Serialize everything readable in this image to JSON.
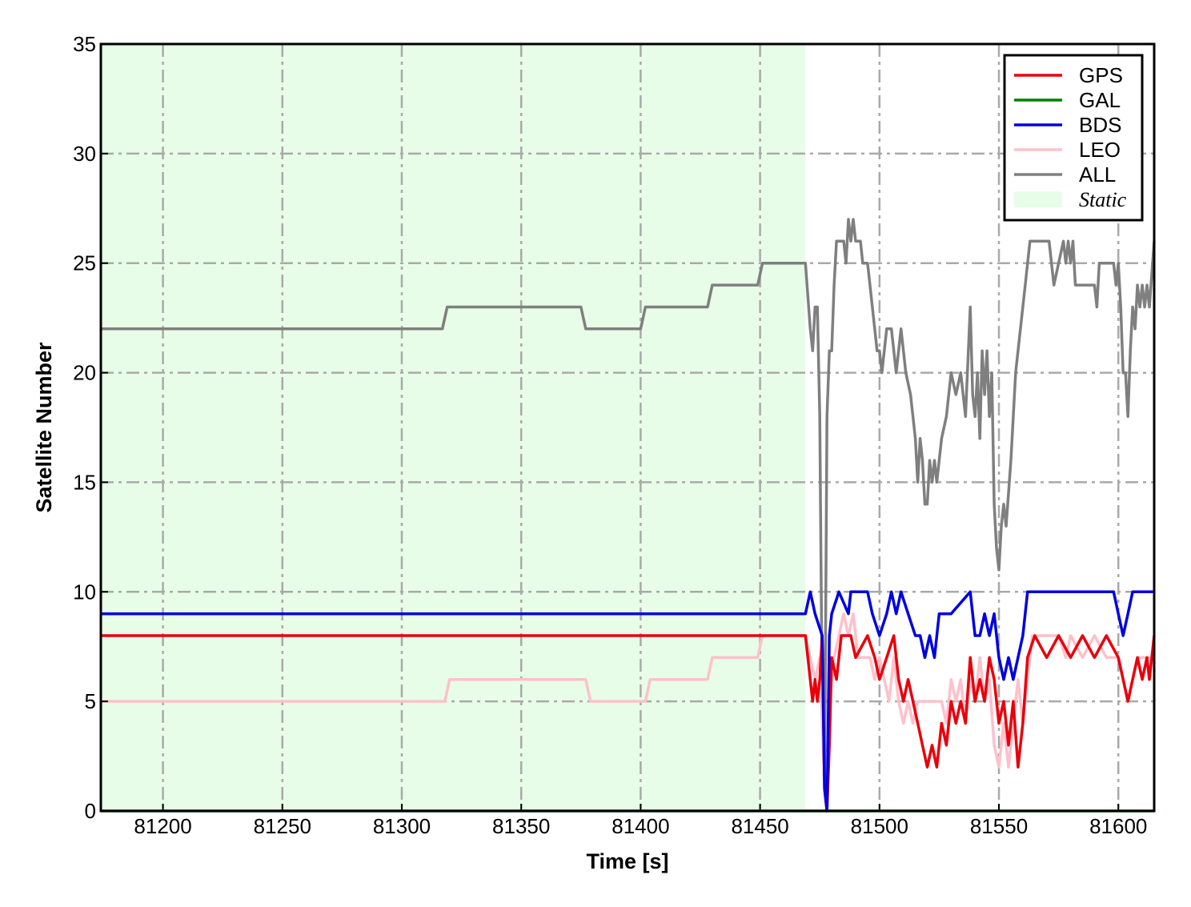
{
  "chart_data": {
    "type": "line",
    "xlabel": "Time [s]",
    "ylabel": "Satellite Number",
    "xlim": [
      81174,
      81615
    ],
    "ylim": [
      0,
      35
    ],
    "x_ticks": [
      81200,
      81250,
      81300,
      81350,
      81400,
      81450,
      81500,
      81550,
      81600
    ],
    "y_ticks": [
      0,
      5,
      10,
      15,
      20,
      25,
      30,
      35
    ],
    "grid": true,
    "legend_position": "top-right",
    "shaded_region": {
      "label": "Static",
      "x_start": 81174,
      "x_end": 81469,
      "color": "#e8fde8"
    },
    "series": [
      {
        "name": "GPS",
        "color": "#e8000b",
        "points": [
          [
            81174,
            8
          ],
          [
            81469,
            8
          ],
          [
            81471,
            6
          ],
          [
            81472,
            5
          ],
          [
            81473,
            6
          ],
          [
            81474,
            5
          ],
          [
            81475,
            6
          ],
          [
            81476,
            8
          ],
          [
            81477,
            1
          ],
          [
            81478,
            0
          ],
          [
            81479,
            3
          ],
          [
            81480,
            7
          ],
          [
            81482,
            6
          ],
          [
            81484,
            8
          ],
          [
            81488,
            8
          ],
          [
            81490,
            7
          ],
          [
            81495,
            8
          ],
          [
            81498,
            7
          ],
          [
            81500,
            6
          ],
          [
            81503,
            7
          ],
          [
            81506,
            8
          ],
          [
            81508,
            6
          ],
          [
            81510,
            5
          ],
          [
            81512,
            6
          ],
          [
            81514,
            5
          ],
          [
            81516,
            4
          ],
          [
            81518,
            3
          ],
          [
            81520,
            2
          ],
          [
            81522,
            3
          ],
          [
            81524,
            2
          ],
          [
            81526,
            4
          ],
          [
            81528,
            3
          ],
          [
            81530,
            5
          ],
          [
            81532,
            4
          ],
          [
            81534,
            5
          ],
          [
            81536,
            4
          ],
          [
            81538,
            7
          ],
          [
            81540,
            5
          ],
          [
            81542,
            6
          ],
          [
            81544,
            5
          ],
          [
            81546,
            7
          ],
          [
            81548,
            6
          ],
          [
            81550,
            4
          ],
          [
            81552,
            5
          ],
          [
            81554,
            3
          ],
          [
            81556,
            5
          ],
          [
            81558,
            2
          ],
          [
            81560,
            4
          ],
          [
            81562,
            7
          ],
          [
            81565,
            8
          ],
          [
            81570,
            7
          ],
          [
            81575,
            8
          ],
          [
            81580,
            7
          ],
          [
            81585,
            8
          ],
          [
            81590,
            7
          ],
          [
            81595,
            8
          ],
          [
            81600,
            7
          ],
          [
            81602,
            6
          ],
          [
            81604,
            5
          ],
          [
            81606,
            6
          ],
          [
            81608,
            7
          ],
          [
            81610,
            6
          ],
          [
            81612,
            7
          ],
          [
            81613,
            6
          ],
          [
            81615,
            8
          ]
        ]
      },
      {
        "name": "GAL",
        "color": "#008000",
        "points": [
          [
            81174,
            0
          ],
          [
            81615,
            0
          ]
        ]
      },
      {
        "name": "BDS",
        "color": "#0000e0",
        "points": [
          [
            81174,
            9
          ],
          [
            81469,
            9
          ],
          [
            81471,
            10
          ],
          [
            81473,
            9
          ],
          [
            81476,
            8
          ],
          [
            81477,
            1
          ],
          [
            81478,
            0
          ],
          [
            81479,
            8
          ],
          [
            81480,
            9
          ],
          [
            81483,
            10
          ],
          [
            81487,
            9
          ],
          [
            81488,
            10
          ],
          [
            81495,
            10
          ],
          [
            81497,
            9
          ],
          [
            81500,
            8
          ],
          [
            81503,
            9
          ],
          [
            81505,
            10
          ],
          [
            81507,
            9
          ],
          [
            81509,
            10
          ],
          [
            81512,
            9
          ],
          [
            81515,
            8
          ],
          [
            81517,
            8
          ],
          [
            81519,
            7
          ],
          [
            81521,
            8
          ],
          [
            81523,
            7
          ],
          [
            81525,
            9
          ],
          [
            81530,
            9
          ],
          [
            81538,
            10
          ],
          [
            81540,
            8
          ],
          [
            81542,
            8
          ],
          [
            81544,
            9
          ],
          [
            81546,
            8
          ],
          [
            81548,
            9
          ],
          [
            81550,
            7
          ],
          [
            81552,
            6
          ],
          [
            81554,
            7
          ],
          [
            81556,
            6
          ],
          [
            81558,
            7
          ],
          [
            81560,
            8
          ],
          [
            81562,
            10
          ],
          [
            81598,
            10
          ],
          [
            81600,
            9
          ],
          [
            81602,
            8
          ],
          [
            81604,
            9
          ],
          [
            81606,
            10
          ],
          [
            81615,
            10
          ]
        ]
      },
      {
        "name": "LEO",
        "color": "#ffc0cb",
        "points": [
          [
            81174,
            5
          ],
          [
            81318,
            5
          ],
          [
            81320,
            6
          ],
          [
            81377,
            6
          ],
          [
            81379,
            5
          ],
          [
            81402,
            5
          ],
          [
            81404,
            6
          ],
          [
            81428,
            6
          ],
          [
            81430,
            7
          ],
          [
            81449,
            7
          ],
          [
            81451,
            8
          ],
          [
            81469,
            8
          ],
          [
            81471,
            7
          ],
          [
            81473,
            6
          ],
          [
            81475,
            7
          ],
          [
            81477,
            1
          ],
          [
            81478,
            0
          ],
          [
            81479,
            5
          ],
          [
            81481,
            7
          ],
          [
            81483,
            8
          ],
          [
            81485,
            9
          ],
          [
            81487,
            8
          ],
          [
            81489,
            9
          ],
          [
            81491,
            7
          ],
          [
            81496,
            7
          ],
          [
            81498,
            6
          ],
          [
            81500,
            7
          ],
          [
            81502,
            6
          ],
          [
            81504,
            5
          ],
          [
            81506,
            7
          ],
          [
            81508,
            5
          ],
          [
            81510,
            4
          ],
          [
            81512,
            5
          ],
          [
            81514,
            4
          ],
          [
            81516,
            5
          ],
          [
            81526,
            5
          ],
          [
            81528,
            4
          ],
          [
            81530,
            6
          ],
          [
            81532,
            5
          ],
          [
            81534,
            6
          ],
          [
            81536,
            4
          ],
          [
            81538,
            6
          ],
          [
            81540,
            5
          ],
          [
            81542,
            7
          ],
          [
            81544,
            5
          ],
          [
            81546,
            6
          ],
          [
            81548,
            3
          ],
          [
            81550,
            2
          ],
          [
            81552,
            4
          ],
          [
            81554,
            2
          ],
          [
            81556,
            4
          ],
          [
            81558,
            6
          ],
          [
            81560,
            4
          ],
          [
            81562,
            6
          ],
          [
            81564,
            8
          ],
          [
            81575,
            8
          ],
          [
            81578,
            7
          ],
          [
            81580,
            8
          ],
          [
            81585,
            7
          ],
          [
            81590,
            8
          ],
          [
            81595,
            7
          ],
          [
            81600,
            7
          ],
          [
            81602,
            6
          ],
          [
            81604,
            5
          ],
          [
            81606,
            6
          ],
          [
            81608,
            7
          ],
          [
            81612,
            7
          ],
          [
            81615,
            7
          ]
        ]
      },
      {
        "name": "ALL",
        "color": "#7f7f7f",
        "points": [
          [
            81174,
            22
          ],
          [
            81317,
            22
          ],
          [
            81319,
            23
          ],
          [
            81375,
            23
          ],
          [
            81377,
            22
          ],
          [
            81400,
            22
          ],
          [
            81402,
            23
          ],
          [
            81428,
            23
          ],
          [
            81430,
            24
          ],
          [
            81449,
            24
          ],
          [
            81451,
            25
          ],
          [
            81469,
            25
          ],
          [
            81471,
            22
          ],
          [
            81472,
            21
          ],
          [
            81473,
            23
          ],
          [
            81474,
            23
          ],
          [
            81475,
            18
          ],
          [
            81476,
            5
          ],
          [
            81477,
            1
          ],
          [
            81478,
            18
          ],
          [
            81479,
            21
          ],
          [
            81480,
            21
          ],
          [
            81481,
            24
          ],
          [
            81482,
            26
          ],
          [
            81485,
            26
          ],
          [
            81486,
            25
          ],
          [
            81487,
            27
          ],
          [
            81488,
            26
          ],
          [
            81489,
            27
          ],
          [
            81490,
            26
          ],
          [
            81492,
            26
          ],
          [
            81493,
            25
          ],
          [
            81495,
            25
          ],
          [
            81497,
            23
          ],
          [
            81499,
            21
          ],
          [
            81500,
            21
          ],
          [
            81501,
            20
          ],
          [
            81503,
            22
          ],
          [
            81505,
            22
          ],
          [
            81507,
            20
          ],
          [
            81509,
            22
          ],
          [
            81511,
            20
          ],
          [
            81513,
            19
          ],
          [
            81515,
            17
          ],
          [
            81516,
            15
          ],
          [
            81517,
            17
          ],
          [
            81518,
            16
          ],
          [
            81519,
            14
          ],
          [
            81520,
            14
          ],
          [
            81521,
            16
          ],
          [
            81522,
            15
          ],
          [
            81523,
            16
          ],
          [
            81524,
            15
          ],
          [
            81526,
            17
          ],
          [
            81528,
            18
          ],
          [
            81530,
            20
          ],
          [
            81532,
            19
          ],
          [
            81534,
            20
          ],
          [
            81536,
            18
          ],
          [
            81538,
            23
          ],
          [
            81539,
            19
          ],
          [
            81540,
            18
          ],
          [
            81541,
            20
          ],
          [
            81542,
            17
          ],
          [
            81543,
            21
          ],
          [
            81544,
            19
          ],
          [
            81545,
            21
          ],
          [
            81546,
            18
          ],
          [
            81547,
            20
          ],
          [
            81548,
            14
          ],
          [
            81549,
            12
          ],
          [
            81550,
            11
          ],
          [
            81551,
            13
          ],
          [
            81552,
            14
          ],
          [
            81553,
            13
          ],
          [
            81555,
            16
          ],
          [
            81557,
            20
          ],
          [
            81559,
            22
          ],
          [
            81561,
            24
          ],
          [
            81563,
            26
          ],
          [
            81571,
            26
          ],
          [
            81573,
            24
          ],
          [
            81575,
            25
          ],
          [
            81577,
            26
          ],
          [
            81578,
            25
          ],
          [
            81579,
            26
          ],
          [
            81580,
            25
          ],
          [
            81581,
            26
          ],
          [
            81582,
            24
          ],
          [
            81590,
            24
          ],
          [
            81591,
            23
          ],
          [
            81592,
            25
          ],
          [
            81598,
            25
          ],
          [
            81599,
            24
          ],
          [
            81600,
            25
          ],
          [
            81601,
            23
          ],
          [
            81602,
            20
          ],
          [
            81603,
            20
          ],
          [
            81604,
            18
          ],
          [
            81605,
            21
          ],
          [
            81606,
            23
          ],
          [
            81607,
            22
          ],
          [
            81608,
            24
          ],
          [
            81609,
            23
          ],
          [
            81610,
            24
          ],
          [
            81611,
            23
          ],
          [
            81612,
            24
          ],
          [
            81613,
            23
          ],
          [
            81615,
            26
          ]
        ]
      }
    ],
    "legend_entries": [
      "GPS",
      "GAL",
      "BDS",
      "LEO",
      "ALL",
      "Static"
    ]
  }
}
